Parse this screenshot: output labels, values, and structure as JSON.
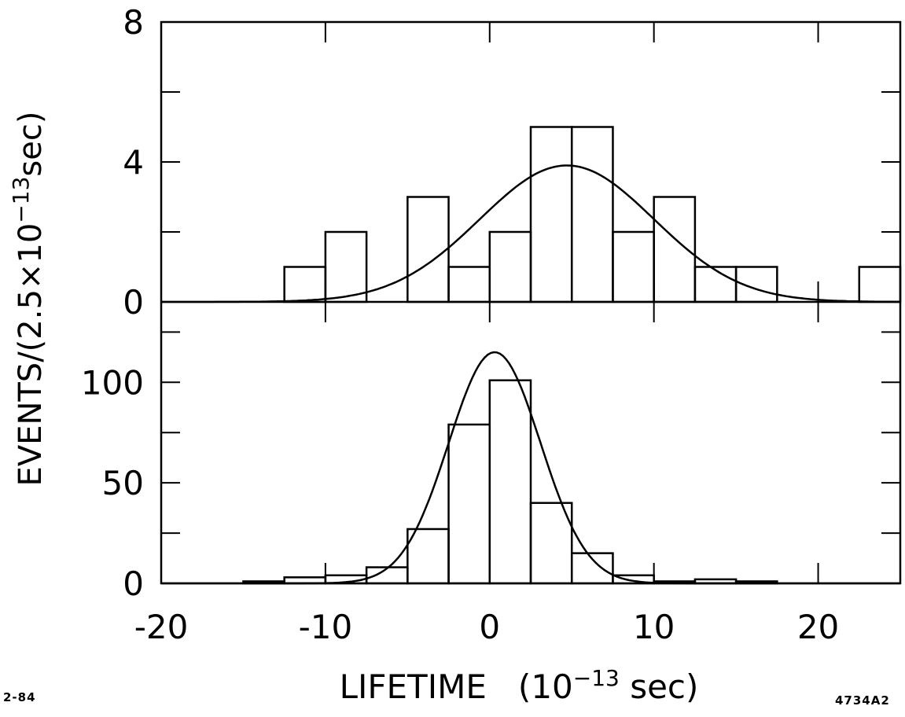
{
  "figure": {
    "date_code": "2-84",
    "figure_id": "4734A2"
  },
  "colors": {
    "ink": "#000000",
    "background": "#ffffff"
  },
  "chart_data": {
    "type": "histogram",
    "ylabel": "EVENTS/(2.5×10⁻¹³ sec)",
    "ylabel_main": "EVENTS/(2.5×10",
    "ylabel_sup": "−13",
    "ylabel_tail": "sec)",
    "xlabel": "LIFETIME   (10⁻¹³ sec)",
    "xlabel_main": "LIFETIME   (10",
    "xlabel_sup": "−13",
    "xlabel_tail": " sec)",
    "xlim": [
      -20,
      25
    ],
    "x_ticks": [
      -20,
      -10,
      0,
      10,
      20
    ],
    "x_tick_labels": [
      "-20",
      "-10",
      "0",
      "10",
      "20"
    ],
    "bin_width": 2.5,
    "panels": [
      {
        "name": "upper",
        "ylim": [
          0,
          8
        ],
        "y_ticks": [
          0,
          4,
          8
        ],
        "y_tick_labels": [
          "0",
          "4",
          "8"
        ],
        "bins": [
          {
            "x0": -12.5,
            "x1": -10,
            "count": 1
          },
          {
            "x0": -10,
            "x1": -7.5,
            "count": 2
          },
          {
            "x0": -5,
            "x1": -2.5,
            "count": 3
          },
          {
            "x0": -2.5,
            "x1": 0,
            "count": 1
          },
          {
            "x0": 0,
            "x1": 2.5,
            "count": 2
          },
          {
            "x0": 2.5,
            "x1": 5,
            "count": 5
          },
          {
            "x0": 5,
            "x1": 7.5,
            "count": 5
          },
          {
            "x0": 7.5,
            "x1": 10,
            "count": 2
          },
          {
            "x0": 10,
            "x1": 12.5,
            "count": 3
          },
          {
            "x0": 12.5,
            "x1": 15,
            "count": 1
          },
          {
            "x0": 15,
            "x1": 17.5,
            "count": 1
          },
          {
            "x0": 22.5,
            "x1": 25,
            "count": 1
          }
        ],
        "fit": {
          "shape": "gaussian",
          "peak": 3.9,
          "mean": 4.7,
          "sigma": 5.3
        }
      },
      {
        "name": "lower",
        "ylim": [
          0,
          140
        ],
        "y_ticks": [
          0,
          50,
          100
        ],
        "y_tick_labels": [
          "0",
          "50",
          "100"
        ],
        "bins": [
          {
            "x0": -15,
            "x1": -12.5,
            "count": 1
          },
          {
            "x0": -12.5,
            "x1": -10,
            "count": 3
          },
          {
            "x0": -10,
            "x1": -7.5,
            "count": 4
          },
          {
            "x0": -7.5,
            "x1": -5,
            "count": 8
          },
          {
            "x0": -5,
            "x1": -2.5,
            "count": 27
          },
          {
            "x0": -2.5,
            "x1": 0,
            "count": 79
          },
          {
            "x0": 0,
            "x1": 2.5,
            "count": 101
          },
          {
            "x0": 2.5,
            "x1": 5,
            "count": 40
          },
          {
            "x0": 5,
            "x1": 7.5,
            "count": 15
          },
          {
            "x0": 7.5,
            "x1": 10,
            "count": 4
          },
          {
            "x0": 10,
            "x1": 12.5,
            "count": 1
          },
          {
            "x0": 12.5,
            "x1": 15,
            "count": 2
          },
          {
            "x0": 15,
            "x1": 17.5,
            "count": 1
          }
        ],
        "fit": {
          "shape": "gaussian",
          "peak": 115,
          "mean": 0.3,
          "sigma": 2.8
        }
      }
    ]
  }
}
